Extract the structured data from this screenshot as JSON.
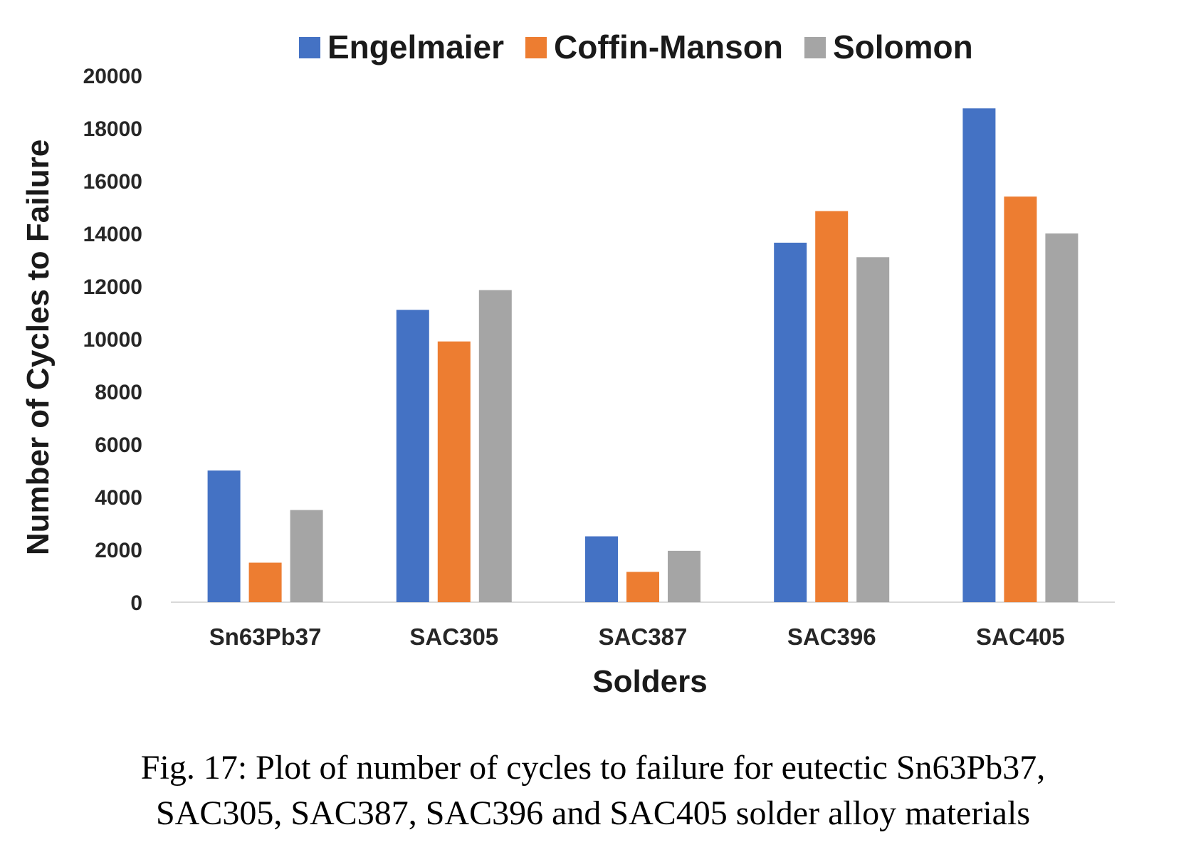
{
  "chart_data": {
    "type": "bar",
    "categories": [
      "Sn63Pb37",
      "SAC305",
      "SAC387",
      "SAC396",
      "SAC405"
    ],
    "series": [
      {
        "name": "Engelmaier",
        "color": "#4472C4",
        "values": [
          5000,
          11100,
          2500,
          13650,
          18750
        ]
      },
      {
        "name": "Coffin-Manson",
        "color": "#ED7D31",
        "values": [
          1500,
          9900,
          1150,
          14850,
          15400
        ]
      },
      {
        "name": "Solomon",
        "color": "#A5A5A5",
        "values": [
          3500,
          11850,
          1950,
          13100,
          14000
        ]
      }
    ],
    "xlabel": "Solders",
    "ylabel": "Number of Cycles to Failure",
    "ylim": [
      0,
      20000
    ],
    "yticks": [
      0,
      2000,
      4000,
      6000,
      8000,
      10000,
      12000,
      14000,
      16000,
      18000,
      20000
    ],
    "grid": false,
    "legend_position": "top"
  },
  "caption": {
    "line1": "Fig. 17: Plot of number of cycles to failure for eutectic Sn63Pb37,",
    "line2": "SAC305, SAC387, SAC396 and SAC405 solder alloy materials"
  }
}
